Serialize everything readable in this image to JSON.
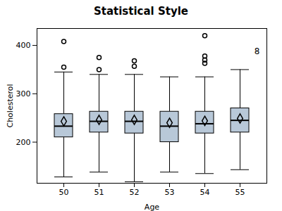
{
  "chart_data": {
    "type": "box",
    "title": "Statistical Style",
    "xlabel": "Age",
    "ylabel": "Cholesterol",
    "categories": [
      50,
      51,
      52,
      53,
      54,
      55
    ],
    "q1": [
      210,
      220,
      218,
      200,
      218,
      220
    ],
    "median": [
      233,
      243,
      243,
      233,
      238,
      245
    ],
    "q3": [
      258,
      263,
      263,
      263,
      263,
      270
    ],
    "mean": [
      243,
      246,
      246,
      240,
      244,
      249
    ],
    "whisker_low": [
      128,
      138,
      118,
      138,
      135,
      143
    ],
    "whisker_high": [
      345,
      340,
      340,
      335,
      335,
      350
    ],
    "outliers": [
      [
        355,
        408
      ],
      [
        350,
        375
      ],
      [
        357,
        368
      ],
      [],
      [
        363,
        370,
        378,
        420
      ],
      []
    ],
    "annotation": {
      "text": "8",
      "category": 55,
      "y": 388
    },
    "color": "#b8c8d8",
    "ylim": [
      115,
      435
    ],
    "yticks": [
      200,
      300,
      400
    ]
  }
}
